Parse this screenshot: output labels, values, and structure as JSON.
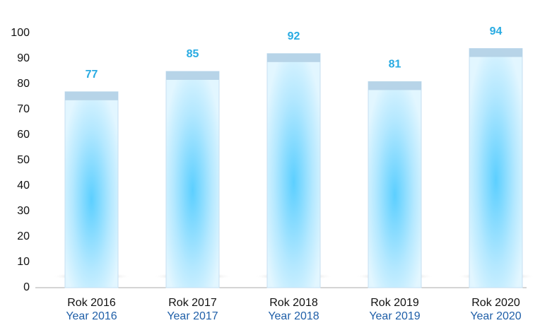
{
  "chart_data": {
    "type": "bar",
    "categories": [
      "Rok 2016",
      "Rok 2017",
      "Rok 2018",
      "Rok 2019",
      "Rok 2020"
    ],
    "category_subtitles": [
      "Year 2016",
      "Year 2017",
      "Year 2018",
      "Year 2019",
      "Year 2020"
    ],
    "values": [
      77,
      85,
      92,
      81,
      94
    ],
    "color": "#5ccfff",
    "ylim": [
      0,
      100
    ],
    "yticks": [
      0,
      10,
      20,
      30,
      40,
      50,
      60,
      70,
      80,
      90,
      100
    ],
    "grid": false
  }
}
